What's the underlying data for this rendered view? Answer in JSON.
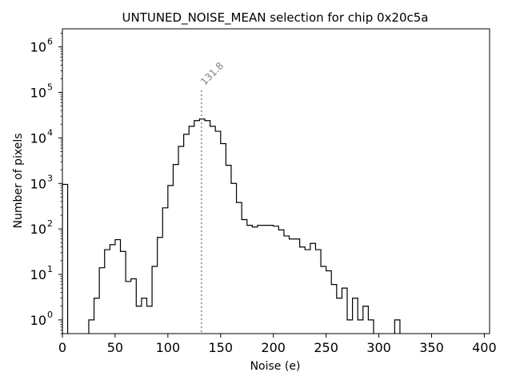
{
  "chart_data": {
    "type": "histogram",
    "title": "UNTUNED_NOISE_MEAN selection for chip 0x20c5a",
    "xlabel": "Noise (e)",
    "ylabel": "Number of pixels",
    "xlim": [
      0,
      405
    ],
    "ylim": [
      0.5,
      2500000
    ],
    "yscale": "log",
    "grid": false,
    "line_color": "#000000",
    "x_ticks": [
      0,
      50,
      100,
      150,
      200,
      250,
      300,
      350,
      400
    ],
    "y_ticks": [
      {
        "value": 1,
        "base": "10",
        "exp": "0"
      },
      {
        "value": 10,
        "base": "10",
        "exp": "1"
      },
      {
        "value": 100,
        "base": "10",
        "exp": "2"
      },
      {
        "value": 1000,
        "base": "10",
        "exp": "3"
      },
      {
        "value": 10000,
        "base": "10",
        "exp": "4"
      },
      {
        "value": 100000,
        "base": "10",
        "exp": "5"
      },
      {
        "value": 1000000,
        "base": "10",
        "exp": "6"
      }
    ],
    "bin_width": 5,
    "bins_start": 0,
    "counts": [
      950,
      0,
      0,
      0,
      0,
      1,
      3,
      14,
      35,
      45,
      58,
      32,
      7,
      8,
      2,
      3,
      2,
      15,
      65,
      290,
      900,
      2600,
      6500,
      12000,
      18000,
      24000,
      26000,
      24000,
      18000,
      14000,
      7500,
      2500,
      1000,
      380,
      160,
      120,
      110,
      120,
      120,
      120,
      115,
      95,
      70,
      60,
      60,
      40,
      35,
      48,
      35,
      15,
      12,
      6,
      3,
      5,
      1,
      3,
      1,
      2,
      1,
      0,
      0,
      0,
      0,
      1,
      0,
      0,
      0,
      0,
      0,
      0,
      0,
      0,
      0,
      0,
      0,
      0,
      0,
      0,
      0,
      0,
      0
    ],
    "marker": {
      "x": 131.8,
      "label": "131.8",
      "line_color": "#808080",
      "top_value": 110000
    }
  }
}
